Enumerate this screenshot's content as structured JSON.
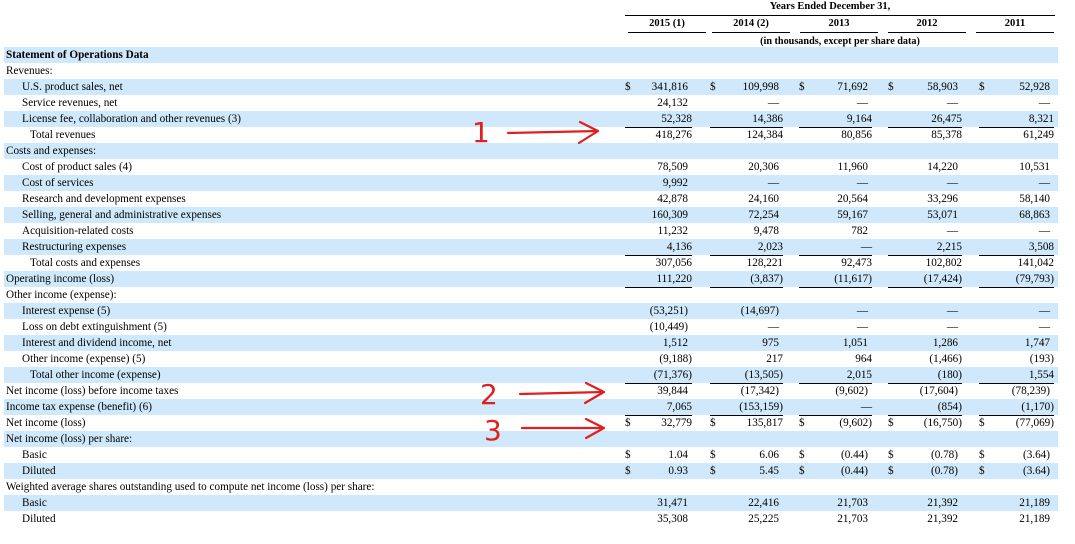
{
  "header": {
    "period": "Years Ended December 31,",
    "years": [
      "2015 (1)",
      "2014 (2)",
      "2013",
      "2012",
      "2011"
    ],
    "units": "(in thousands, except per share data)"
  },
  "rows": [
    {
      "label": "Statement of Operations Data",
      "indent": 0,
      "bold": true,
      "shade": true
    },
    {
      "label": "Revenues:",
      "indent": 0
    },
    {
      "label": "U.S. product sales, net",
      "indent": 1,
      "shade": true,
      "dollar": true,
      "values": [
        "341,816",
        "109,998",
        "71,692",
        "58,903",
        "52,928"
      ]
    },
    {
      "label": "Service revenues, net",
      "indent": 1,
      "values": [
        "24,132",
        "—",
        "—",
        "—",
        "—"
      ]
    },
    {
      "label": "License fee, collaboration and other revenues (3)",
      "indent": 1,
      "shade": true,
      "under": "single",
      "values": [
        "52,328",
        "14,386",
        "9,164",
        "26,475",
        "8,321"
      ]
    },
    {
      "label": "Total revenues",
      "indent": 2,
      "under": "single",
      "values": [
        "418,276",
        "124,384",
        "80,856",
        "85,378",
        "61,249"
      ]
    },
    {
      "label": "Costs and expenses:",
      "indent": 0,
      "shade": true
    },
    {
      "label": "Cost of product sales (4)",
      "indent": 1,
      "values": [
        "78,509",
        "20,306",
        "11,960",
        "14,220",
        "10,531"
      ]
    },
    {
      "label": "Cost of services",
      "indent": 1,
      "shade": true,
      "values": [
        "9,992",
        "—",
        "—",
        "—",
        "—"
      ]
    },
    {
      "label": "Research and development expenses",
      "indent": 1,
      "values": [
        "42,878",
        "24,160",
        "20,564",
        "33,296",
        "58,140"
      ]
    },
    {
      "label": "Selling, general and administrative expenses",
      "indent": 1,
      "shade": true,
      "values": [
        "160,309",
        "72,254",
        "59,167",
        "53,071",
        "68,863"
      ]
    },
    {
      "label": "Acquisition-related costs",
      "indent": 1,
      "values": [
        "11,232",
        "9,478",
        "782",
        "—",
        "—"
      ]
    },
    {
      "label": "Restructuring expenses",
      "indent": 1,
      "shade": true,
      "under": "single",
      "values": [
        "4,136",
        "2,023",
        "—",
        "2,215",
        "3,508"
      ]
    },
    {
      "label": "Total costs and expenses",
      "indent": 2,
      "under": "single",
      "values": [
        "307,056",
        "128,221",
        "92,473",
        "102,802",
        "141,042"
      ]
    },
    {
      "label": "Operating income (loss)",
      "indent": 0,
      "shade": true,
      "under": "single",
      "values": [
        "111,220",
        "(3,837)",
        "(11,617)",
        "(17,424)",
        "(79,793)"
      ]
    },
    {
      "label": "Other income (expense):",
      "indent": 0
    },
    {
      "label": "Interest expense (5)",
      "indent": 1,
      "shade": true,
      "values": [
        "(53,251)",
        "(14,697)",
        "—",
        "—",
        "—"
      ]
    },
    {
      "label": "Loss on debt extinguishment (5)",
      "indent": 1,
      "values": [
        "(10,449)",
        "—",
        "—",
        "—",
        "—"
      ]
    },
    {
      "label": "Interest and dividend income, net",
      "indent": 1,
      "shade": true,
      "values": [
        "1,512",
        "975",
        "1,051",
        "1,286",
        "1,747"
      ]
    },
    {
      "label": "Other income (expense) (5)",
      "indent": 1,
      "under": "single",
      "values": [
        "(9,188)",
        "217",
        "964",
        "(1,466)",
        "(193)"
      ]
    },
    {
      "label": "Total other income (expense)",
      "indent": 2,
      "shade": true,
      "under": "single",
      "values": [
        "(71,376)",
        "(13,505)",
        "2,015",
        "(180)",
        "1,554"
      ]
    },
    {
      "label": "Net income (loss) before income taxes",
      "indent": 0,
      "values": [
        "39,844",
        "(17,342)",
        "(9,602)",
        "(17,604)",
        "(78,239)"
      ]
    },
    {
      "label": "Income tax expense (benefit) (6)",
      "indent": 0,
      "shade": true,
      "under": "single",
      "values": [
        "7,065",
        "(153,159)",
        "—",
        "(854)",
        "(1,170)"
      ]
    },
    {
      "label": "Net income (loss)",
      "indent": 0,
      "dollar": true,
      "under": "double",
      "values": [
        "32,779",
        "135,817",
        "(9,602)",
        "(16,750)",
        "(77,069)"
      ]
    },
    {
      "label": "Net income (loss) per share:",
      "indent": 0,
      "shade": true
    },
    {
      "label": "Basic",
      "indent": 1,
      "dollar": true,
      "values": [
        "1.04",
        "6.06",
        "(0.44)",
        "(0.78)",
        "(3.64)"
      ]
    },
    {
      "label": "Diluted",
      "indent": 1,
      "shade": true,
      "dollar": true,
      "values": [
        "0.93",
        "5.45",
        "(0.44)",
        "(0.78)",
        "(3.64)"
      ]
    },
    {
      "label": "Weighted average shares outstanding used to compute net income (loss) per share:",
      "indent": 0
    },
    {
      "label": "Basic",
      "indent": 1,
      "shade": true,
      "values": [
        "31,471",
        "22,416",
        "21,703",
        "21,392",
        "21,189"
      ]
    },
    {
      "label": "Diluted",
      "indent": 1,
      "values": [
        "35,308",
        "25,225",
        "21,703",
        "21,392",
        "21,189"
      ]
    }
  ],
  "annotations": {
    "color": "#e0201e",
    "labels": [
      "1",
      "2",
      "3"
    ]
  },
  "currency_symbol": "$",
  "colors": {
    "row_shade": "#cfe8fb",
    "text": "#000000"
  }
}
